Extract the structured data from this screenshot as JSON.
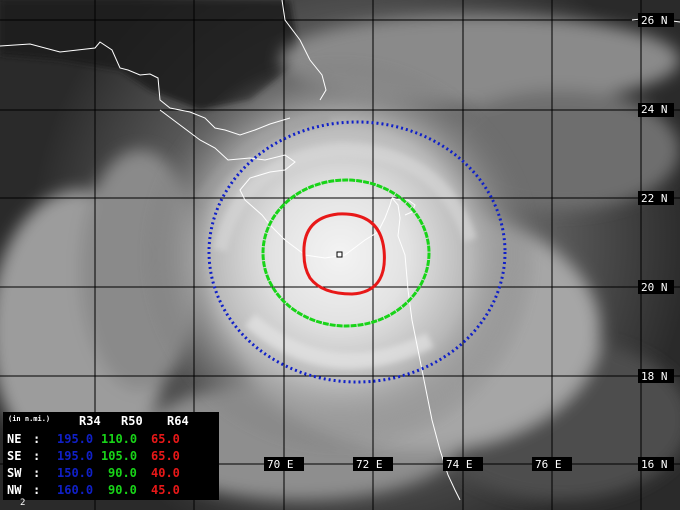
{
  "colors": {
    "r34": "#1020c8",
    "r50": "#18d418",
    "r64": "#e81818",
    "grid": "#000000",
    "coast": "#ffffff",
    "label": "#ffffff"
  },
  "lat_labels": [
    "26 N",
    "24 N",
    "22 N",
    "20 N",
    "18 N",
    "16 N"
  ],
  "lon_labels": [
    "70 E",
    "72 E",
    "74 E",
    "76 E"
  ],
  "table": {
    "units": "(in n.mi.)",
    "headers": [
      "R34",
      "R50",
      "R64"
    ],
    "rows": [
      {
        "quad": "NE",
        "sep": ":",
        "r34": "195.0",
        "r50": "110.0",
        "r64": "65.0"
      },
      {
        "quad": "SE",
        "sep": ":",
        "r34": "195.0",
        "r50": "105.0",
        "r64": "65.0"
      },
      {
        "quad": "SW",
        "sep": ":",
        "r34": "150.0",
        "r50": "90.0",
        "r64": "40.0"
      },
      {
        "quad": "NW",
        "sep": ":",
        "r34": "160.0",
        "r50": "90.0",
        "r64": "45.0"
      }
    ]
  },
  "footer_number": "2"
}
